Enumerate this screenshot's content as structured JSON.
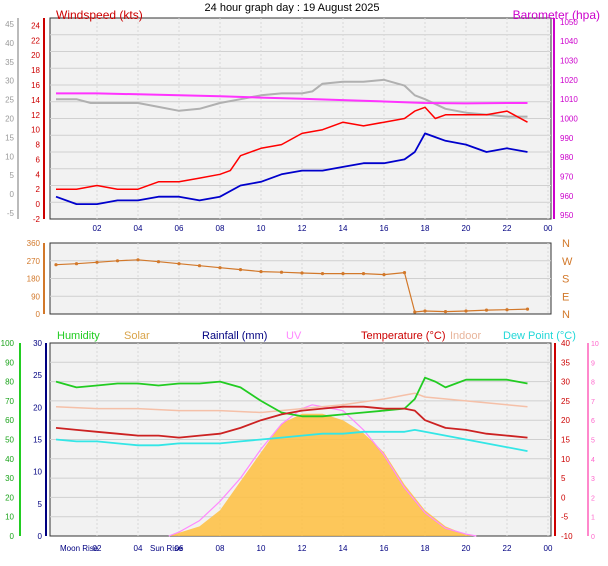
{
  "title": "24 hour graph day : 19 August 2025",
  "colors": {
    "windspeed": "#ff0000",
    "gust_avg": "#0000cc",
    "barometer": "#ff33ff",
    "barometer_prev": "#b0b0b0",
    "direction": "#d2782a",
    "humidity": "#22cc22",
    "solar": "#ffc040",
    "rainfall": "#000080",
    "uv": "#ff88ff",
    "temperature": "#cc2222",
    "indoor": "#f5c0a8",
    "dewpoint": "#33e6e6",
    "plot_bg": "#f2f2f2"
  },
  "chart_data": [
    {
      "id": "wind-baro",
      "type": "line",
      "left_axis_label": "Windspeed (kts)",
      "right_axis_label": "Barometer (hpa)",
      "outer_left_ticks": [
        "-5",
        "0",
        "5",
        "10",
        "15",
        "20",
        "25",
        "30",
        "35",
        "40",
        "45"
      ],
      "wind_ticks": [
        "-2",
        "0",
        "2",
        "4",
        "6",
        "8",
        "10",
        "12",
        "14",
        "16",
        "18",
        "20",
        "22",
        "24"
      ],
      "wind_ylim": [
        -2,
        25
      ],
      "baro_ticks": [
        "950",
        "960",
        "970",
        "980",
        "990",
        "1000",
        "1010",
        "1020",
        "1030",
        "1040",
        "1050"
      ],
      "baro_ylim": [
        948,
        1052
      ],
      "x_ticks": [
        "02",
        "04",
        "06",
        "08",
        "10",
        "12",
        "14",
        "16",
        "18",
        "20",
        "22",
        "00"
      ],
      "series": [
        {
          "key": "windspeed",
          "x": [
            0,
            1,
            2,
            3,
            4,
            5,
            6,
            7,
            8,
            8.5,
            9,
            10,
            11,
            12,
            13,
            14,
            15,
            16,
            17,
            17.5,
            18,
            18.5,
            19,
            20,
            21,
            22,
            23
          ],
          "values": [
            2,
            2,
            2.5,
            2,
            2,
            3,
            3,
            3.5,
            4,
            4.5,
            6.5,
            7.5,
            8,
            9.5,
            10,
            11,
            10.5,
            11,
            11.5,
            12.5,
            13,
            11.5,
            12,
            12,
            12,
            12.5,
            11
          ]
        },
        {
          "key": "gust_avg",
          "x": [
            0,
            1,
            2,
            3,
            4,
            5,
            6,
            7,
            8,
            9,
            10,
            11,
            12,
            13,
            14,
            15,
            16,
            17,
            17.5,
            18,
            18.5,
            19,
            20,
            21,
            22,
            23
          ],
          "values": [
            1,
            0,
            0,
            0.5,
            0.5,
            1,
            1,
            0.5,
            1,
            2.5,
            3,
            4,
            4.5,
            4.5,
            5,
            5.5,
            5.5,
            6,
            7,
            9.5,
            9,
            8.5,
            8,
            7,
            7.5,
            7
          ]
        },
        {
          "key": "barometer",
          "x": [
            0,
            2,
            4,
            6,
            8,
            10,
            12,
            14,
            16,
            18,
            20,
            22,
            23
          ],
          "values": [
            1013,
            1013,
            1012.5,
            1012,
            1011.5,
            1010.8,
            1010.2,
            1009.5,
            1008.8,
            1008,
            1007.8,
            1008,
            1008
          ]
        },
        {
          "key": "barometer_prev",
          "x": [
            0,
            1,
            1.7,
            2,
            3,
            4,
            5,
            6,
            7,
            8,
            9,
            10,
            11,
            12,
            12.5,
            13,
            14,
            15,
            16,
            17,
            17.5,
            18,
            19,
            20,
            21,
            22,
            23
          ],
          "values": [
            1010,
            1010,
            1008,
            1008,
            1008,
            1008,
            1006,
            1004,
            1005,
            1008,
            1010,
            1012,
            1013,
            1013,
            1014,
            1018,
            1019,
            1019,
            1020,
            1017,
            1012,
            1010,
            1005,
            1003,
            1002,
            1001,
            1001
          ]
        }
      ]
    },
    {
      "id": "direction",
      "type": "scatter",
      "left_ticks": [
        "0",
        "90",
        "180",
        "270",
        "360"
      ],
      "ylim": [
        0,
        360
      ],
      "right_labels": [
        "N",
        "W",
        "S",
        "E",
        "N"
      ],
      "series": [
        {
          "key": "direction",
          "x": [
            0,
            1,
            2,
            3,
            4,
            5,
            6,
            7,
            8,
            9,
            10,
            11,
            12,
            13,
            14,
            15,
            16,
            17,
            17.5,
            18,
            19,
            20,
            21,
            22,
            23
          ],
          "values": [
            250,
            255,
            262,
            270,
            275,
            265,
            255,
            245,
            235,
            225,
            215,
            212,
            208,
            205,
            205,
            205,
            200,
            210,
            10,
            15,
            12,
            15,
            20,
            22,
            25
          ]
        }
      ]
    },
    {
      "id": "temp-hum",
      "type": "line",
      "legend": [
        "Humidity",
        "Solar",
        "Rainfall (mm)",
        "UV",
        "Temperature (°C)",
        "Indoor",
        "Dew Point (°C)"
      ],
      "humidity_ticks": [
        "0",
        "10",
        "20",
        "30",
        "40",
        "50",
        "60",
        "70",
        "80",
        "90",
        "100"
      ],
      "rain_ticks": [
        "0",
        "5",
        "10",
        "15",
        "20",
        "25",
        "30"
      ],
      "temp_ticks": [
        "-10",
        "-5",
        "0",
        "5",
        "10",
        "15",
        "20",
        "25",
        "30",
        "35",
        "40"
      ],
      "uv_ticks": [
        "0",
        "1",
        "2",
        "3",
        "4",
        "5",
        "6",
        "7",
        "8",
        "9",
        "10"
      ],
      "temp_ylim": [
        -10,
        40
      ],
      "x_ticks": [
        "02",
        "04",
        "06",
        "08",
        "10",
        "12",
        "14",
        "16",
        "18",
        "20",
        "22",
        "00"
      ],
      "bottom_labels": [
        "Moon Rise",
        "Sun Rise"
      ],
      "series": [
        {
          "key": "humidity",
          "x": [
            0,
            1,
            2,
            3,
            4,
            5,
            6,
            7,
            8,
            9,
            10,
            11,
            12,
            13,
            14,
            15,
            16,
            17,
            17.5,
            18,
            18.5,
            19,
            20,
            21,
            22,
            23
          ],
          "values": [
            80,
            77,
            78,
            79,
            79,
            78,
            79,
            79,
            80,
            77,
            70,
            64,
            62,
            62,
            63,
            64,
            65,
            66,
            71,
            82,
            80,
            77,
            81,
            81,
            81,
            79
          ]
        },
        {
          "key": "temperature",
          "x": [
            0,
            1,
            2,
            3,
            4,
            5,
            6,
            7,
            8,
            9,
            10,
            11,
            12,
            13,
            14,
            15,
            16,
            17,
            17.5,
            18,
            19,
            20,
            21,
            22,
            23
          ],
          "values": [
            18,
            17.5,
            17,
            16.5,
            16,
            16,
            15.5,
            16,
            16.5,
            18,
            20,
            21.5,
            22.5,
            23,
            23.5,
            23.5,
            23,
            23,
            22.5,
            20,
            18,
            17.5,
            16.5,
            16,
            15.5
          ]
        },
        {
          "key": "indoor",
          "x": [
            0,
            2,
            4,
            6,
            8,
            10,
            12,
            14,
            16,
            17,
            17.5,
            18,
            20,
            22,
            23
          ],
          "values": [
            23.5,
            23,
            23,
            22.5,
            22.5,
            22,
            23,
            24,
            25.5,
            26.5,
            27,
            26,
            25,
            24,
            23.5
          ]
        },
        {
          "key": "dewpoint",
          "x": [
            0,
            1,
            2,
            3,
            4,
            5,
            6,
            7,
            8,
            9,
            10,
            11,
            12,
            13,
            14,
            15,
            16,
            17,
            17.5,
            18,
            19,
            20,
            21,
            22,
            23
          ],
          "values": [
            15,
            14.5,
            14.5,
            14,
            13.5,
            13.5,
            14,
            14,
            14,
            14.5,
            15,
            15.5,
            16,
            16.5,
            16.5,
            17,
            17,
            17,
            17.5,
            17,
            16,
            15,
            14,
            13,
            12
          ]
        },
        {
          "key": "solar",
          "x": [
            5.5,
            6,
            7,
            8,
            9,
            10,
            11,
            12,
            13,
            14,
            15,
            16,
            17,
            18,
            19,
            20,
            20.5
          ],
          "values": [
            0,
            0.5,
            1.5,
            4,
            8.5,
            13,
            17.5,
            19,
            19,
            18,
            16,
            13,
            8,
            4,
            1.5,
            0.2,
            0
          ]
        },
        {
          "key": "uv",
          "x": [
            5.5,
            6,
            7,
            8,
            9,
            10,
            11,
            12,
            12.5,
            13,
            14,
            15,
            16,
            17,
            18,
            19,
            20,
            20.5
          ],
          "values": [
            0,
            0.2,
            0.8,
            1.8,
            3,
            4.5,
            5.8,
            6.6,
            6.8,
            6.7,
            6.5,
            5.5,
            4.2,
            2.5,
            1.2,
            0.4,
            0.1,
            0
          ]
        }
      ]
    }
  ]
}
